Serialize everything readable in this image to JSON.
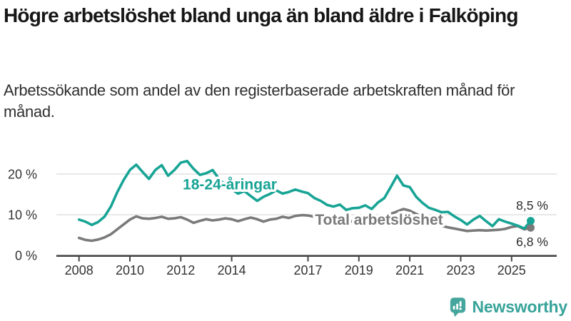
{
  "header": {
    "title": "Högre arbetslöshet bland unga än bland äldre i Falköping",
    "subtitle": "Arbetssökande som andel av den registerbaserade arbetskraften månad för månad."
  },
  "chart_data": {
    "type": "line",
    "x_unit": "year (quarterly samples)",
    "x_start": 2008,
    "x_step": 0.25,
    "x_end": 2025.75,
    "ylim": [
      0,
      24
    ],
    "grid": "horizontal",
    "yticks": [
      {
        "value": 0,
        "label": "0 %"
      },
      {
        "value": 10,
        "label": "10 %"
      },
      {
        "value": 20,
        "label": "20 %"
      }
    ],
    "xticks": [
      {
        "value": 2008,
        "label": "2008"
      },
      {
        "value": 2010,
        "label": "2010"
      },
      {
        "value": 2012,
        "label": "2012"
      },
      {
        "value": 2014,
        "label": "2014"
      },
      {
        "value": 2017,
        "label": "2017"
      },
      {
        "value": 2019,
        "label": "2019"
      },
      {
        "value": 2021,
        "label": "2021"
      },
      {
        "value": 2023,
        "label": "2023"
      },
      {
        "value": 2025,
        "label": "2025"
      }
    ],
    "series": [
      {
        "name": "18-24-åringar",
        "color": "#18a495",
        "end_value": 8.5,
        "end_label": "8,5 %",
        "values": [
          8.8,
          8.3,
          7.5,
          8.2,
          9.5,
          12.0,
          15.5,
          18.5,
          21.0,
          22.3,
          20.5,
          18.8,
          21.0,
          22.2,
          19.6,
          21.0,
          22.8,
          23.2,
          21.3,
          19.8,
          20.2,
          21.0,
          18.8,
          17.3,
          16.3,
          15.2,
          15.8,
          14.6,
          13.4,
          14.4,
          15.1,
          16.0,
          15.2,
          15.6,
          16.2,
          15.7,
          15.3,
          14.1,
          13.4,
          12.4,
          12.0,
          12.5,
          11.2,
          11.6,
          11.7,
          12.3,
          11.4,
          13.0,
          14.1,
          16.8,
          19.6,
          17.2,
          16.8,
          14.4,
          12.9,
          11.7,
          11.2,
          10.6,
          10.7,
          9.6,
          8.7,
          7.6,
          8.8,
          9.7,
          8.4,
          7.2,
          8.9,
          8.3,
          7.8,
          7.3,
          6.6,
          8.5
        ]
      },
      {
        "name": "Total arbetslöshet",
        "color": "#7a7a7a",
        "end_value": 6.8,
        "end_label": "6,8 %",
        "values": [
          4.3,
          3.8,
          3.6,
          3.9,
          4.4,
          5.2,
          6.4,
          7.6,
          8.8,
          9.6,
          9.1,
          9.0,
          9.2,
          9.5,
          9.0,
          9.1,
          9.4,
          8.8,
          8.0,
          8.5,
          8.9,
          8.6,
          8.8,
          9.1,
          8.9,
          8.4,
          8.9,
          9.3,
          8.9,
          8.3,
          8.8,
          9.0,
          9.5,
          9.2,
          9.7,
          9.9,
          9.8,
          9.5,
          9.3,
          9.0,
          8.8,
          8.6,
          8.4,
          8.3,
          8.2,
          8.3,
          8.4,
          8.7,
          9.4,
          10.2,
          10.8,
          11.4,
          11.0,
          10.2,
          9.4,
          8.7,
          7.9,
          7.3,
          6.9,
          6.6,
          6.3,
          6.0,
          6.1,
          6.2,
          6.1,
          6.2,
          6.3,
          6.5,
          7.0,
          7.2,
          6.4,
          6.8
        ]
      }
    ]
  },
  "branding": {
    "name": "Newsworthy",
    "icon": "bar-chart-speech-bubble",
    "color": "#38a39a",
    "icon_color": "#45a69d"
  }
}
